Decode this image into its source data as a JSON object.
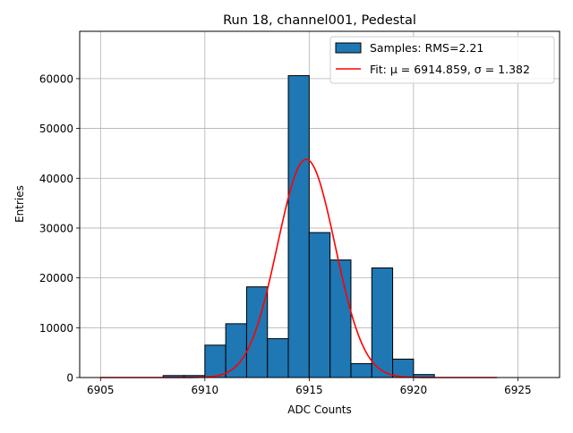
{
  "chart_data": {
    "type": "bar",
    "title": "Run 18, channel001, Pedestal",
    "xlabel": "ADC Counts",
    "ylabel": "Entries",
    "xlim": [
      6904.0,
      6927.0
    ],
    "ylim": [
      0,
      69500
    ],
    "grid": true,
    "legend_position": "top-right",
    "x_ticks": [
      6905,
      6910,
      6915,
      6920,
      6925
    ],
    "y_ticks": [
      0,
      10000,
      20000,
      30000,
      40000,
      50000,
      60000
    ],
    "bins": {
      "edges": [
        6908,
        6909,
        6910,
        6911,
        6912,
        6913,
        6914,
        6915,
        6916,
        6917,
        6918,
        6919,
        6920,
        6921
      ],
      "values": [
        400,
        400,
        6500,
        10800,
        18200,
        7800,
        60600,
        29100,
        23600,
        2800,
        22000,
        3700,
        600
      ],
      "fill_color": "#1f77b4",
      "edge_color": "#000000"
    },
    "fit": {
      "mu": 6914.859,
      "sigma": 1.382,
      "amplitude": 43800,
      "x_range": [
        6905,
        6924
      ],
      "color": "#ff0000"
    },
    "legend": [
      {
        "label": "Samples: RMS=2.21",
        "kind": "patch",
        "color": "#1f77b4"
      },
      {
        "label": "Fit: μ = 6914.859, σ = 1.382",
        "kind": "line",
        "color": "#ff0000"
      }
    ]
  }
}
